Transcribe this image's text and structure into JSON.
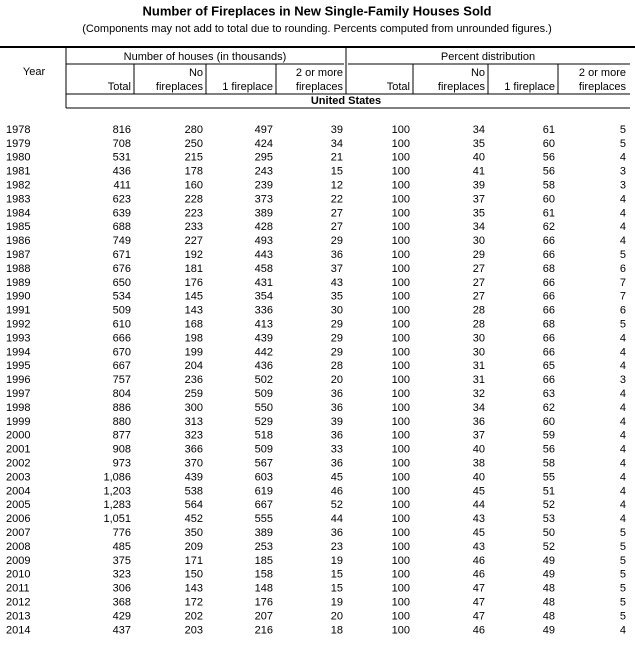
{
  "header": {
    "title": "Number of Fireplaces in New Single-Family Houses Sold",
    "subtitle": "(Components may not add to total due to rounding.  Percents computed from unrounded figures.)"
  },
  "table": {
    "year_label": "Year",
    "groups": [
      "Number of houses (in thousands)",
      "Percent distribution"
    ],
    "columns": [
      [
        "Total"
      ],
      [
        "No",
        "fireplaces"
      ],
      [
        "1 fireplace"
      ],
      [
        "2 or more",
        "fireplaces"
      ],
      [
        "Total"
      ],
      [
        "No",
        "fireplaces"
      ],
      [
        "1 fireplace"
      ],
      [
        "2 or more",
        "fireplaces"
      ]
    ],
    "section": "United States",
    "rows": [
      [
        "1978",
        "816",
        "280",
        "497",
        "39",
        "100",
        "34",
        "61",
        "5"
      ],
      [
        "1979",
        "708",
        "250",
        "424",
        "34",
        "100",
        "35",
        "60",
        "5"
      ],
      [
        "1980",
        "531",
        "215",
        "295",
        "21",
        "100",
        "40",
        "56",
        "4"
      ],
      [
        "1981",
        "436",
        "178",
        "243",
        "15",
        "100",
        "41",
        "56",
        "3"
      ],
      [
        "1982",
        "411",
        "160",
        "239",
        "12",
        "100",
        "39",
        "58",
        "3"
      ],
      [
        "1983",
        "623",
        "228",
        "373",
        "22",
        "100",
        "37",
        "60",
        "4"
      ],
      [
        "1984",
        "639",
        "223",
        "389",
        "27",
        "100",
        "35",
        "61",
        "4"
      ],
      [
        "1985",
        "688",
        "233",
        "428",
        "27",
        "100",
        "34",
        "62",
        "4"
      ],
      [
        "1986",
        "749",
        "227",
        "493",
        "29",
        "100",
        "30",
        "66",
        "4"
      ],
      [
        "1987",
        "671",
        "192",
        "443",
        "36",
        "100",
        "29",
        "66",
        "5"
      ],
      [
        "1988",
        "676",
        "181",
        "458",
        "37",
        "100",
        "27",
        "68",
        "6"
      ],
      [
        "1989",
        "650",
        "176",
        "431",
        "43",
        "100",
        "27",
        "66",
        "7"
      ],
      [
        "1990",
        "534",
        "145",
        "354",
        "35",
        "100",
        "27",
        "66",
        "7"
      ],
      [
        "1991",
        "509",
        "143",
        "336",
        "30",
        "100",
        "28",
        "66",
        "6"
      ],
      [
        "1992",
        "610",
        "168",
        "413",
        "29",
        "100",
        "28",
        "68",
        "5"
      ],
      [
        "1993",
        "666",
        "198",
        "439",
        "29",
        "100",
        "30",
        "66",
        "4"
      ],
      [
        "1994",
        "670",
        "199",
        "442",
        "29",
        "100",
        "30",
        "66",
        "4"
      ],
      [
        "1995",
        "667",
        "204",
        "436",
        "28",
        "100",
        "31",
        "65",
        "4"
      ],
      [
        "1996",
        "757",
        "236",
        "502",
        "20",
        "100",
        "31",
        "66",
        "3"
      ],
      [
        "1997",
        "804",
        "259",
        "509",
        "36",
        "100",
        "32",
        "63",
        "4"
      ],
      [
        "1998",
        "886",
        "300",
        "550",
        "36",
        "100",
        "34",
        "62",
        "4"
      ],
      [
        "1999",
        "880",
        "313",
        "529",
        "39",
        "100",
        "36",
        "60",
        "4"
      ],
      [
        "2000",
        "877",
        "323",
        "518",
        "36",
        "100",
        "37",
        "59",
        "4"
      ],
      [
        "2001",
        "908",
        "366",
        "509",
        "33",
        "100",
        "40",
        "56",
        "4"
      ],
      [
        "2002",
        "973",
        "370",
        "567",
        "36",
        "100",
        "38",
        "58",
        "4"
      ],
      [
        "2003",
        "1,086",
        "439",
        "603",
        "45",
        "100",
        "40",
        "55",
        "4"
      ],
      [
        "2004",
        "1,203",
        "538",
        "619",
        "46",
        "100",
        "45",
        "51",
        "4"
      ],
      [
        "2005",
        "1,283",
        "564",
        "667",
        "52",
        "100",
        "44",
        "52",
        "4"
      ],
      [
        "2006",
        "1,051",
        "452",
        "555",
        "44",
        "100",
        "43",
        "53",
        "4"
      ],
      [
        "2007",
        "776",
        "350",
        "389",
        "36",
        "100",
        "45",
        "50",
        "5"
      ],
      [
        "2008",
        "485",
        "209",
        "253",
        "23",
        "100",
        "43",
        "52",
        "5"
      ],
      [
        "2009",
        "375",
        "171",
        "185",
        "19",
        "100",
        "46",
        "49",
        "5"
      ],
      [
        "2010",
        "323",
        "150",
        "158",
        "15",
        "100",
        "46",
        "49",
        "5"
      ],
      [
        "2011",
        "306",
        "143",
        "148",
        "15",
        "100",
        "47",
        "48",
        "5"
      ],
      [
        "2012",
        "368",
        "172",
        "176",
        "19",
        "100",
        "47",
        "48",
        "5"
      ],
      [
        "2013",
        "429",
        "202",
        "207",
        "20",
        "100",
        "47",
        "48",
        "5"
      ],
      [
        "2014",
        "437",
        "203",
        "216",
        "18",
        "100",
        "46",
        "49",
        "4"
      ]
    ]
  }
}
